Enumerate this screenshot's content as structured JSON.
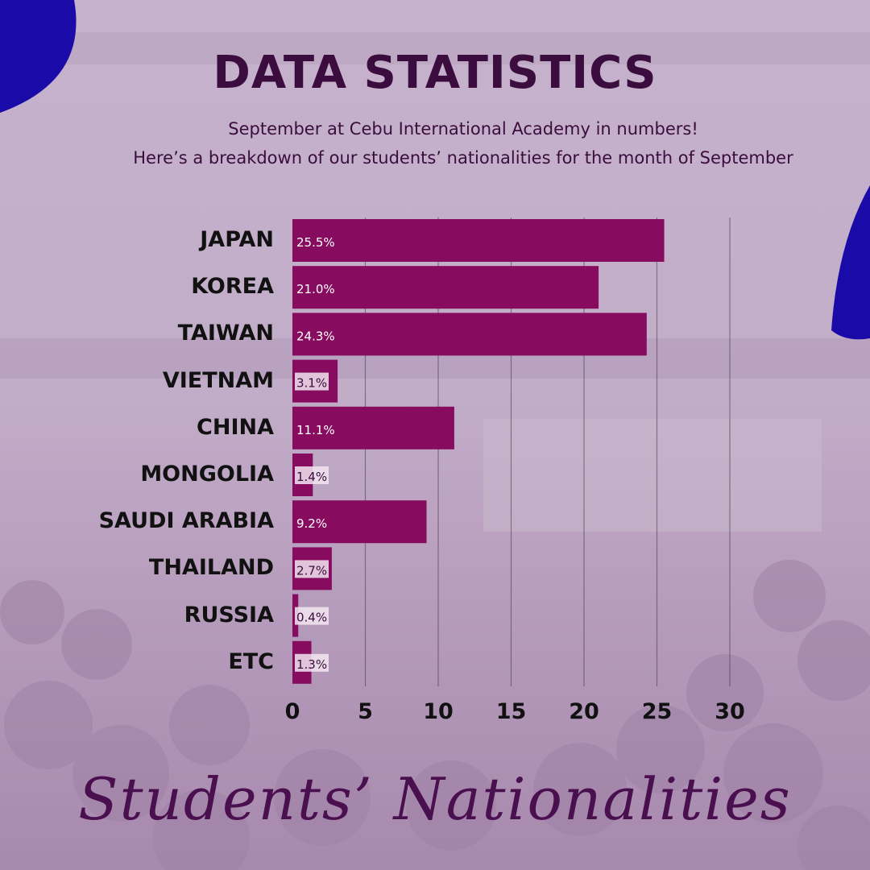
{
  "title": "DATA STATISTICS",
  "subtitle_line1": "September at Cebu International Academy in numbers!",
  "subtitle_line2": "Here’s a breakdown of our students’ nationalities for the month of September",
  "footer_title": "Students’ Nationalities",
  "colors": {
    "bar": "#870c5f",
    "title": "#3b0d3f",
    "accent_blob": "#1a0aa8",
    "grid": "#4a3a4a"
  },
  "chart_data": {
    "type": "bar",
    "orientation": "horizontal",
    "title": "",
    "xlabel": "",
    "ylabel": "",
    "categories": [
      "JAPAN",
      "KOREA",
      "TAIWAN",
      "VIETNAM",
      "CHINA",
      "MONGOLIA",
      "SAUDI ARABIA",
      "THAILAND",
      "RUSSIA",
      "ETC"
    ],
    "values": [
      25.5,
      21.0,
      24.3,
      3.1,
      11.1,
      1.4,
      9.2,
      2.7,
      0.4,
      1.3
    ],
    "data_labels": [
      "25.5%",
      "21.0%",
      "24.3%",
      "3.1%",
      "11.1%",
      "1.4%",
      "9.2%",
      "2.7%",
      "0.4%",
      "1.3%"
    ],
    "xlim": [
      0,
      30
    ],
    "xticks": [
      "0",
      "5",
      "10",
      "15",
      "20",
      "25",
      "30"
    ],
    "grid": "vertical"
  }
}
